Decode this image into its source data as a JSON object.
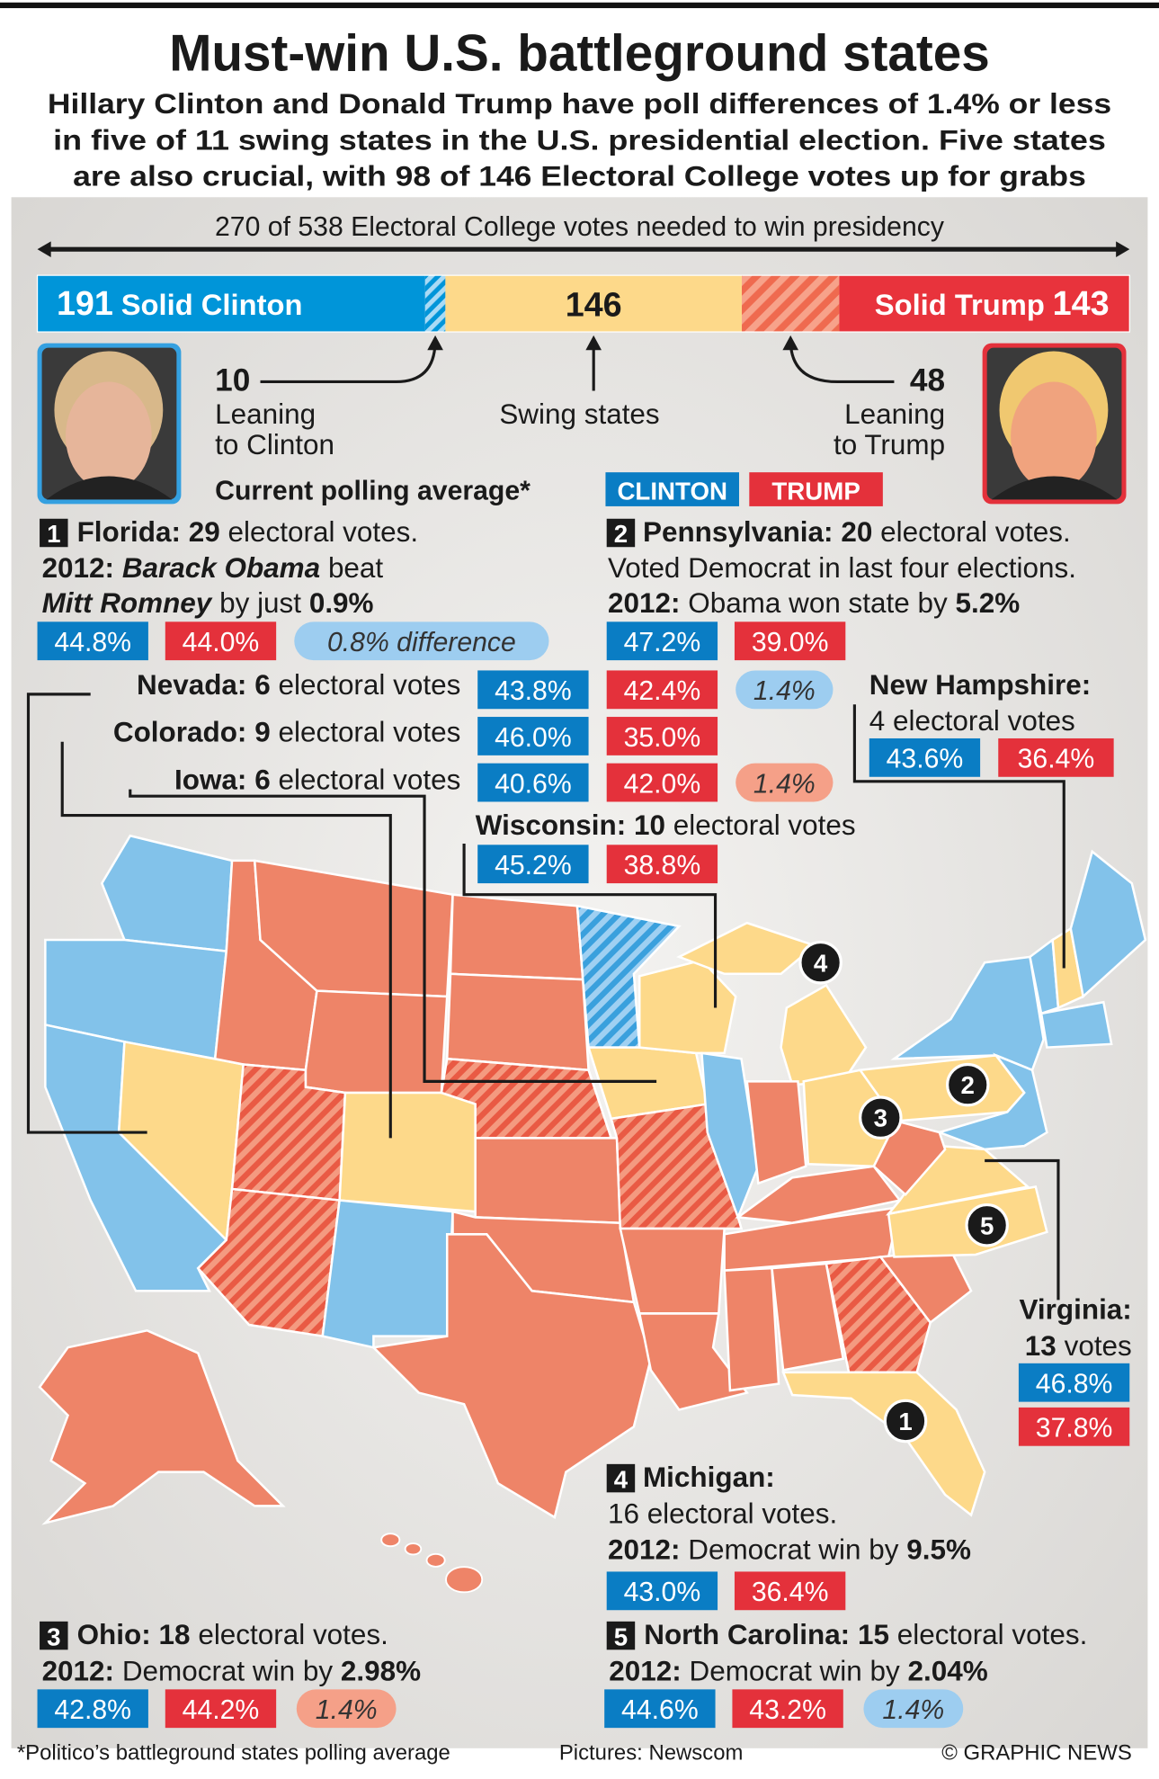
{
  "header": {
    "title": "Must-win U.S. battleground states",
    "subtitle": [
      "Hillary Clinton and Donald Trump have poll differences of 1.4% or less",
      "in five of 11 swing states in the U.S. presidential election. Five states",
      "are also crucial, with 98 of 146 Electoral College votes up for grabs"
    ]
  },
  "votes": {
    "caption": "270 of 538 Electoral College votes needed to win presidency",
    "solid_clinton": {
      "value": 191,
      "label": "Solid Clinton"
    },
    "leaning_clinton": {
      "value": 10,
      "label": [
        "Leaning",
        "to Clinton"
      ]
    },
    "swing": {
      "value": 146,
      "label": "Swing states"
    },
    "leaning_trump": {
      "value": 48,
      "label": [
        "Leaning",
        "to Trump"
      ]
    },
    "solid_trump": {
      "value": 143,
      "label": "Solid Trump"
    }
  },
  "legend": {
    "heading": "Current polling average*",
    "clinton": "CLINTON",
    "trump": "TRUMP"
  },
  "states": {
    "florida": {
      "number": "1",
      "name": "Florida:",
      "votes": "29",
      "votes_label": "electoral votes.",
      "history": [
        "2012:",
        "Barack Obama",
        "beat",
        "Mitt Romney",
        "by just",
        "0.9%"
      ],
      "clinton": "44.8%",
      "trump": "44.0%",
      "difference": "0.8% difference"
    },
    "pennsylvania": {
      "number": "2",
      "name": "Pennsylvania:",
      "votes": "20",
      "votes_label": "electoral votes.",
      "note": "Voted Democrat in last four elections.",
      "history": [
        "2012:",
        "Obama won state by",
        "5.2%"
      ],
      "clinton": "47.2%",
      "trump": "39.0%"
    },
    "nevada": {
      "name": "Nevada:",
      "votes": "6",
      "votes_label": "electoral votes",
      "clinton": "43.8%",
      "trump": "42.4%",
      "difference": "1.4%"
    },
    "colorado": {
      "name": "Colorado:",
      "votes": "9",
      "votes_label": "electoral votes",
      "clinton": "46.0%",
      "trump": "35.0%"
    },
    "iowa": {
      "name": "Iowa:",
      "votes": "6",
      "votes_label": "electoral votes",
      "clinton": "40.6%",
      "trump": "42.0%",
      "difference": "1.4%"
    },
    "wisconsin": {
      "name": "Wisconsin:",
      "votes": "10",
      "votes_label": "electoral votes",
      "clinton": "45.2%",
      "trump": "38.8%"
    },
    "new_hampshire": {
      "name": "New Hampshire:",
      "votes_label": "4 electoral votes",
      "clinton": "43.6%",
      "trump": "36.4%"
    },
    "virginia": {
      "name": "Virginia:",
      "votes": "13",
      "votes_label": "votes",
      "clinton": "46.8%",
      "trump": "37.8%"
    },
    "michigan": {
      "number": "4",
      "name": "Michigan:",
      "votes_label": "16 electoral votes.",
      "history": [
        "2012:",
        "Democrat win by",
        "9.5%"
      ],
      "clinton": "43.0%",
      "trump": "36.4%"
    },
    "ohio": {
      "number": "3",
      "name": "Ohio:",
      "votes": "18",
      "votes_label": "electoral votes.",
      "history": [
        "2012:",
        "Democrat win by",
        "2.98%"
      ],
      "clinton": "42.8%",
      "trump": "44.2%",
      "difference": "1.4%"
    },
    "north_carolina": {
      "number": "5",
      "name": "North Carolina:",
      "votes": "15",
      "votes_label": "electoral votes.",
      "history": [
        "2012:",
        "Democrat win by",
        "2.04%"
      ],
      "clinton": "44.6%",
      "trump": "43.2%",
      "difference": "1.4%"
    }
  },
  "footer": {
    "note": "*Politico’s battleground states polling average",
    "credit": "Pictures: Newscom",
    "source": "© GRAPHIC NEWS"
  }
}
